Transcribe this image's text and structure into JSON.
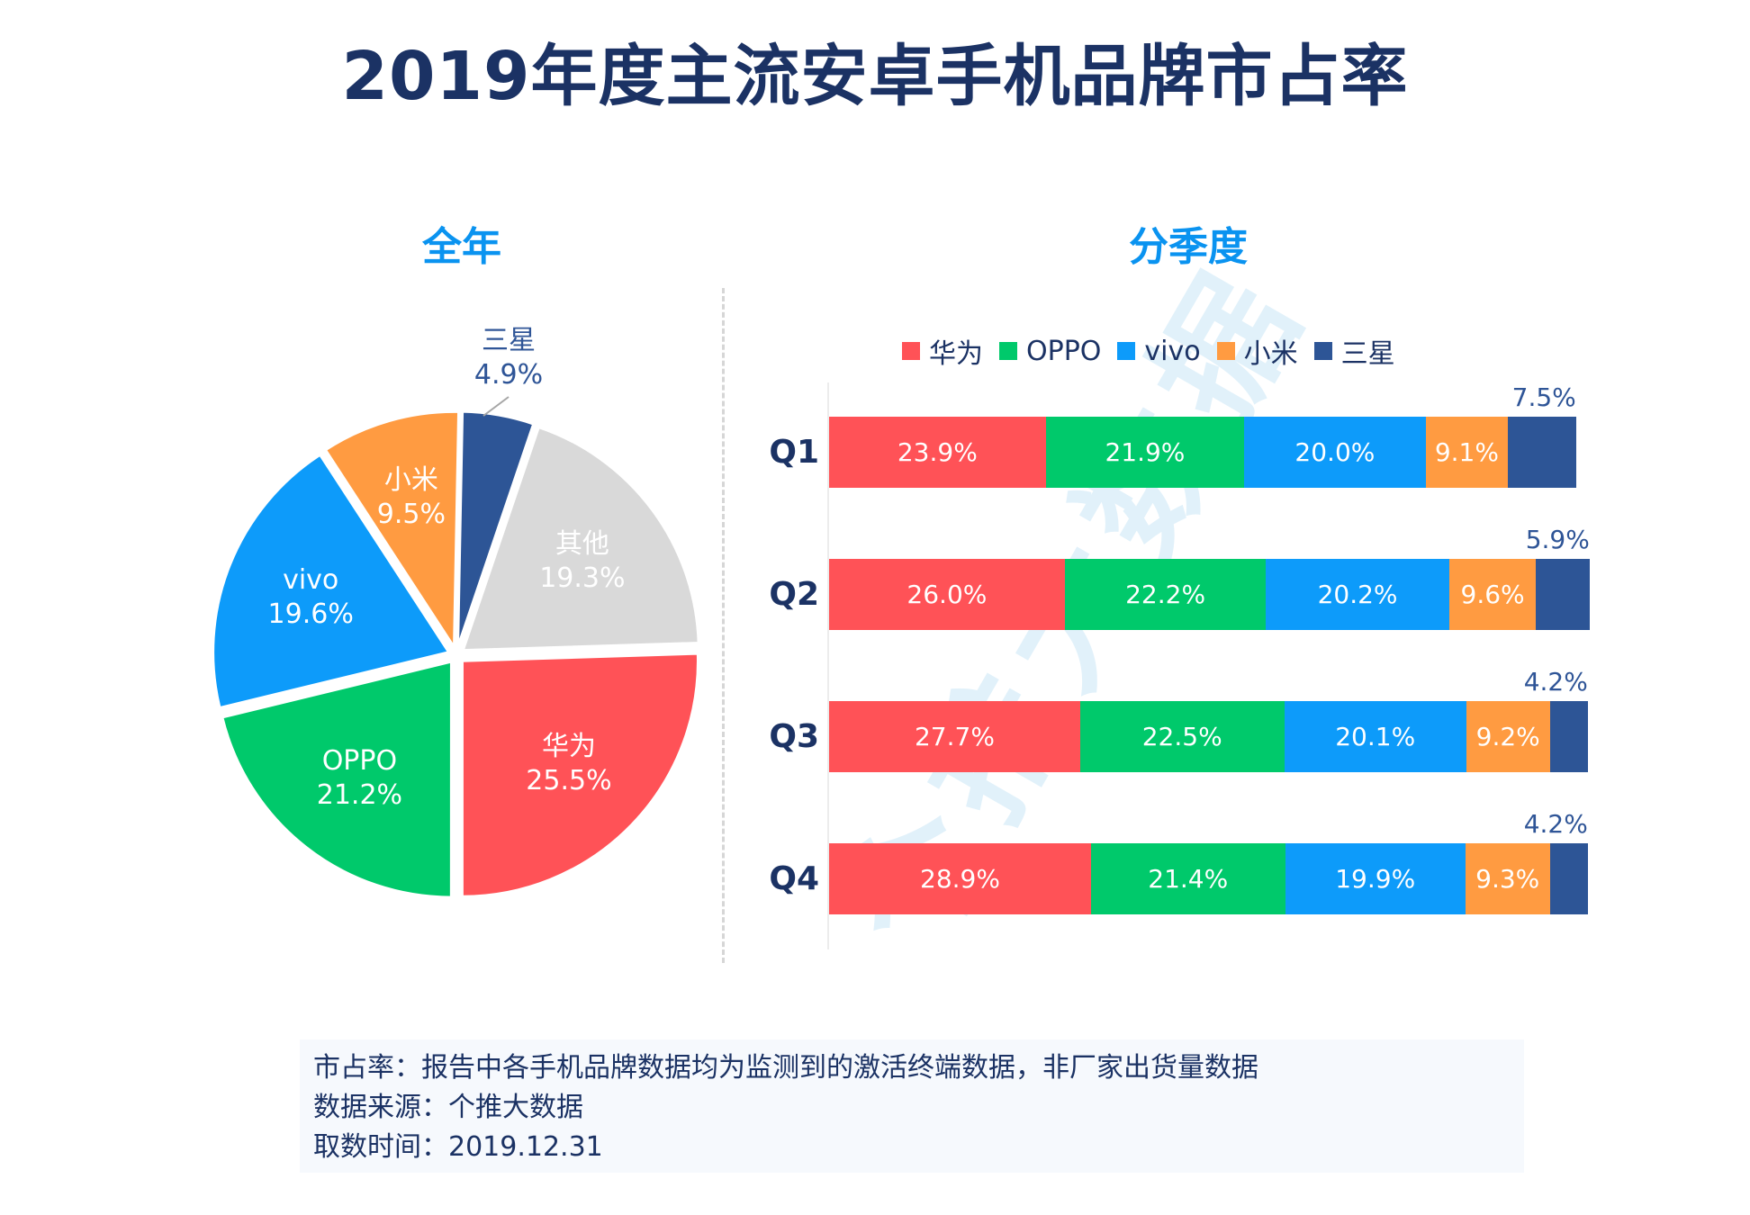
{
  "title": "2019年度主流安卓手机品牌市占率",
  "watermark": "个推大数据",
  "colors": {
    "华为": "#ff5257",
    "OPPO": "#00c96b",
    "vivo": "#0d9bfa",
    "小米": "#ff9b41",
    "三星": "#2d5596",
    "其他": "#d9d9d9"
  },
  "chart_data": [
    {
      "type": "pie",
      "title": "全年",
      "slices": [
        {
          "label": "三星",
          "value": 4.9,
          "value_label": "4.9%"
        },
        {
          "label": "其他",
          "value": 19.3,
          "value_label": "19.3%"
        },
        {
          "label": "华为",
          "value": 25.5,
          "value_label": "25.5%"
        },
        {
          "label": "OPPO",
          "value": 21.2,
          "value_label": "21.2%"
        },
        {
          "label": "vivo",
          "value": 19.6,
          "value_label": "19.6%"
        },
        {
          "label": "小米",
          "value": 9.5,
          "value_label": "9.5%"
        }
      ],
      "start": "top",
      "direction": "clockwise",
      "exploded": true
    },
    {
      "type": "bar",
      "orientation": "horizontal",
      "stacked": true,
      "title": "分季度",
      "categories": [
        "Q1",
        "Q2",
        "Q3",
        "Q4"
      ],
      "legend": [
        "华为",
        "OPPO",
        "vivo",
        "小米",
        "三星"
      ],
      "legend_position": "top",
      "series": [
        {
          "name": "华为",
          "values": [
            23.9,
            26.0,
            27.7,
            28.9
          ],
          "labels": [
            "23.9%",
            "26.0%",
            "27.7%",
            "28.9%"
          ]
        },
        {
          "name": "OPPO",
          "values": [
            21.9,
            22.2,
            22.5,
            21.4
          ],
          "labels": [
            "21.9%",
            "22.2%",
            "22.5%",
            "21.4%"
          ]
        },
        {
          "name": "vivo",
          "values": [
            20.0,
            20.2,
            20.1,
            19.9
          ],
          "labels": [
            "20.0%",
            "20.2%",
            "20.1%",
            "19.9%"
          ]
        },
        {
          "name": "小米",
          "values": [
            9.1,
            9.6,
            9.2,
            9.3
          ],
          "labels": [
            "9.1%",
            "9.6%",
            "9.2%",
            "9.3%"
          ]
        },
        {
          "name": "三星",
          "values": [
            7.5,
            5.9,
            4.2,
            4.2
          ],
          "labels": [
            "7.5%",
            "5.9%",
            "4.2%",
            "4.2%"
          ]
        }
      ],
      "xlim": [
        0,
        100
      ],
      "grid": false
    }
  ],
  "footer": {
    "lines": [
      "市占率：报告中各手机品牌数据均为监测到的激活终端数据，非厂家出货量数据",
      "数据来源：个推大数据",
      "取数时间：2019.12.31"
    ]
  }
}
